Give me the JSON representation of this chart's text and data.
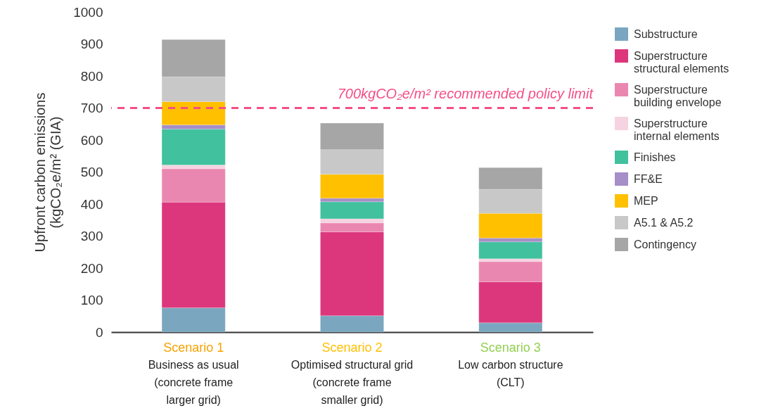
{
  "chart_data": {
    "type": "bar",
    "stacked": true,
    "ylabel": "Upfront carbon emissions\n(kgCO₂e/m² (GIA)",
    "categories": [
      "Scenario 1\nBusiness as usual\n(concrete frame\nlarger grid)",
      "Scenario 2\nOptimised structural grid\n(concrete frame\nsmaller grid)",
      "Scenario 3\nLow carbon structure\n(CLT)"
    ],
    "series": [
      {
        "name": "Substructure",
        "color": "#7aa7bf",
        "values": [
          76,
          51,
          29
        ]
      },
      {
        "name": "Superstructure\nstructural elements",
        "color": "#dc377c",
        "values": [
          330,
          262,
          128
        ]
      },
      {
        "name": "Superstructure\nbuilding envelope",
        "color": "#ea87b0",
        "values": [
          104,
          28,
          63
        ]
      },
      {
        "name": "Superstructure\ninternal elements",
        "color": "#f6d3e0",
        "values": [
          12,
          13,
          9
        ]
      },
      {
        "name": "Finishes",
        "color": "#41c19e",
        "values": [
          112,
          53,
          53
        ]
      },
      {
        "name": "FF&E",
        "color": "#a68ec8",
        "values": [
          13,
          11,
          12
        ]
      },
      {
        "name": "MEP",
        "color": "#ffc000",
        "values": [
          73,
          75,
          77
        ]
      },
      {
        "name": "A5.1 & A5.2",
        "color": "#c8c8c8",
        "values": [
          77,
          77,
          75
        ]
      },
      {
        "name": "Contingency",
        "color": "#a6a6a6",
        "values": [
          117,
          83,
          68
        ]
      }
    ],
    "ylim": [
      0,
      1000
    ],
    "yticks": [
      0,
      100,
      200,
      300,
      400,
      500,
      600,
      700,
      800,
      900,
      1000
    ],
    "ref_lines": [
      {
        "axis": "y",
        "value": 700,
        "label": "700kgCO₂e/m² recommended  policy limit",
        "color": "#f54f85",
        "line_style": "dashed"
      }
    ],
    "grid": false,
    "legend": "right"
  }
}
